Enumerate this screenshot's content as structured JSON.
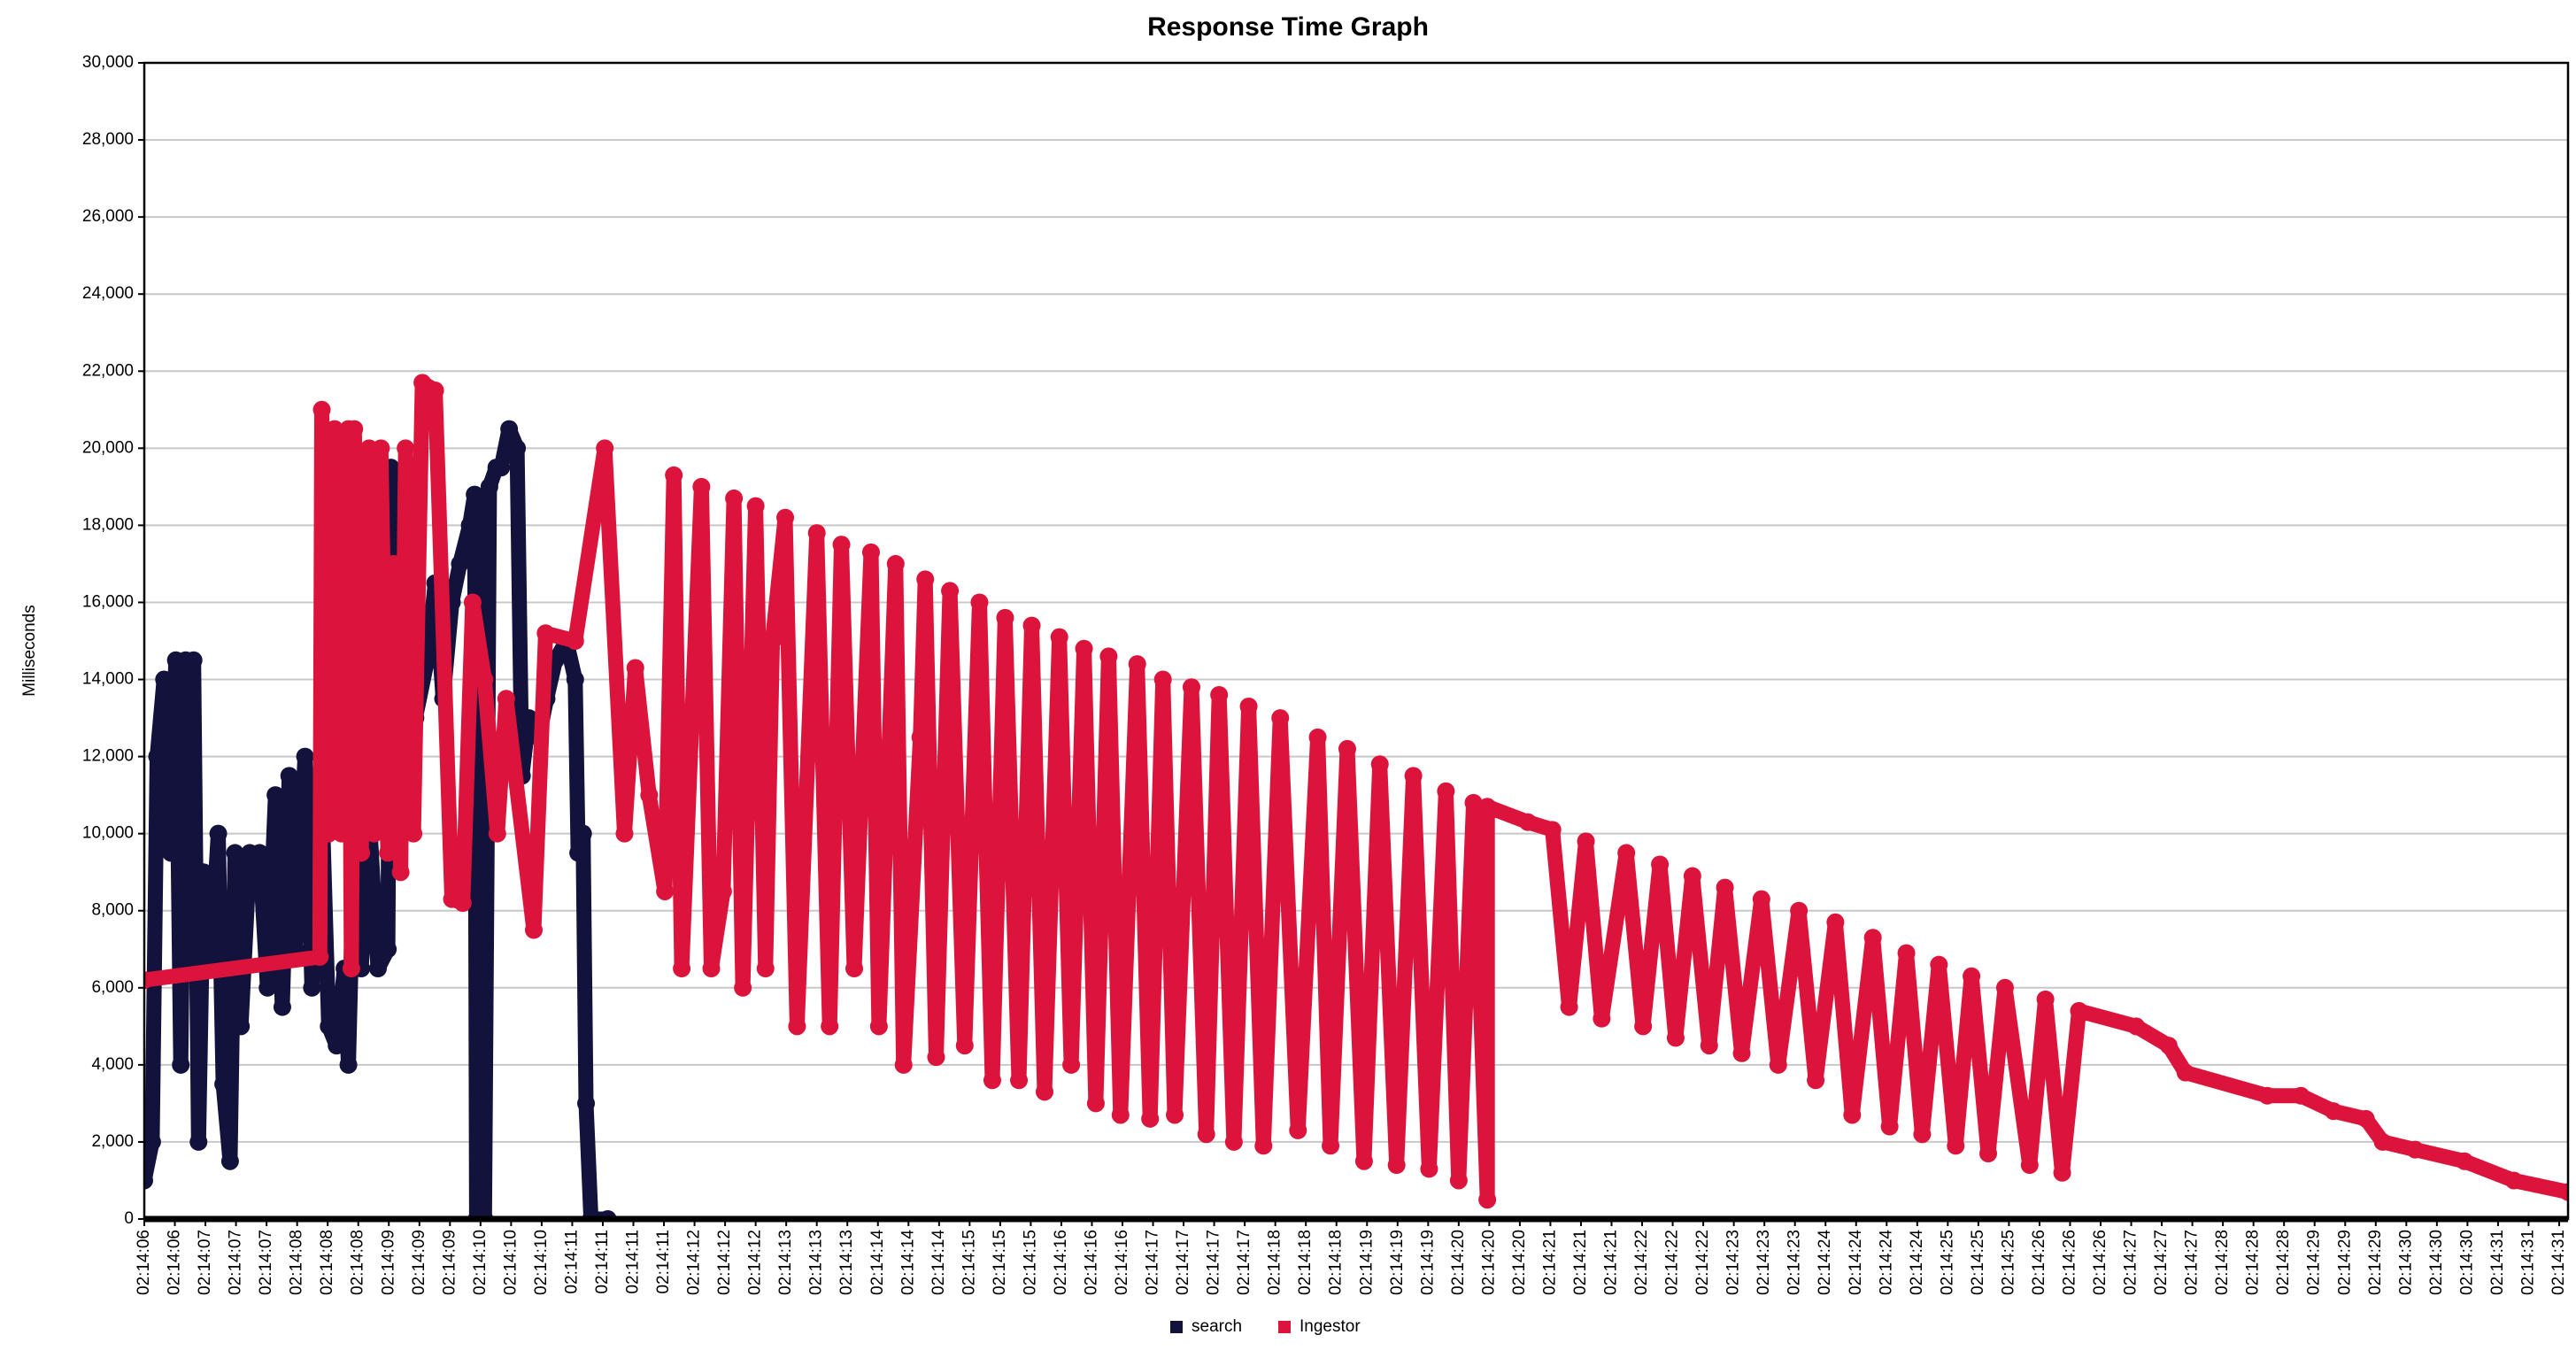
{
  "chart_data": {
    "type": "line",
    "title": "Response Time Graph",
    "y_label": "Milliseconds",
    "xlim": [
      0,
      24.58
    ],
    "xticks": [
      {
        "value": 0,
        "label": "02:14:06"
      },
      {
        "value": 0.31,
        "label": "02:14:06"
      },
      {
        "value": 0.62,
        "label": "02:14:07"
      },
      {
        "value": 0.93,
        "label": "02:14:07"
      },
      {
        "value": 1.24,
        "label": "02:14:07"
      },
      {
        "value": 1.55,
        "label": "02:14:08"
      },
      {
        "value": 1.86,
        "label": "02:14:08"
      },
      {
        "value": 2.17,
        "label": "02:14:08"
      },
      {
        "value": 2.48,
        "label": "02:14:09"
      },
      {
        "value": 2.79,
        "label": "02:14:09"
      },
      {
        "value": 3.1,
        "label": "02:14:09"
      },
      {
        "value": 3.41,
        "label": "02:14:10"
      },
      {
        "value": 3.72,
        "label": "02:14:10"
      },
      {
        "value": 4.03,
        "label": "02:14:10"
      },
      {
        "value": 4.34,
        "label": "02:14:11"
      },
      {
        "value": 4.65,
        "label": "02:14:11"
      },
      {
        "value": 4.96,
        "label": "02:14:11"
      },
      {
        "value": 5.27,
        "label": "02:14:11"
      },
      {
        "value": 5.58,
        "label": "02:14:12"
      },
      {
        "value": 5.89,
        "label": "02:14:12"
      },
      {
        "value": 6.2,
        "label": "02:14:12"
      },
      {
        "value": 6.51,
        "label": "02:14:13"
      },
      {
        "value": 6.82,
        "label": "02:14:13"
      },
      {
        "value": 7.13,
        "label": "02:14:13"
      },
      {
        "value": 7.44,
        "label": "02:14:14"
      },
      {
        "value": 7.75,
        "label": "02:14:14"
      },
      {
        "value": 8.06,
        "label": "02:14:14"
      },
      {
        "value": 8.37,
        "label": "02:14:15"
      },
      {
        "value": 8.68,
        "label": "02:14:15"
      },
      {
        "value": 8.99,
        "label": "02:14:15"
      },
      {
        "value": 9.3,
        "label": "02:14:16"
      },
      {
        "value": 9.61,
        "label": "02:14:16"
      },
      {
        "value": 9.92,
        "label": "02:14:16"
      },
      {
        "value": 10.23,
        "label": "02:14:17"
      },
      {
        "value": 10.54,
        "label": "02:14:17"
      },
      {
        "value": 10.85,
        "label": "02:14:17"
      },
      {
        "value": 11.16,
        "label": "02:14:17"
      },
      {
        "value": 11.47,
        "label": "02:14:18"
      },
      {
        "value": 11.78,
        "label": "02:14:18"
      },
      {
        "value": 12.09,
        "label": "02:14:18"
      },
      {
        "value": 12.4,
        "label": "02:14:19"
      },
      {
        "value": 12.71,
        "label": "02:14:19"
      },
      {
        "value": 13.02,
        "label": "02:14:19"
      },
      {
        "value": 13.33,
        "label": "02:14:20"
      },
      {
        "value": 13.64,
        "label": "02:14:20"
      },
      {
        "value": 13.95,
        "label": "02:14:20"
      },
      {
        "value": 14.26,
        "label": "02:14:21"
      },
      {
        "value": 14.57,
        "label": "02:14:21"
      },
      {
        "value": 14.88,
        "label": "02:14:21"
      },
      {
        "value": 15.19,
        "label": "02:14:22"
      },
      {
        "value": 15.5,
        "label": "02:14:22"
      },
      {
        "value": 15.81,
        "label": "02:14:22"
      },
      {
        "value": 16.12,
        "label": "02:14:23"
      },
      {
        "value": 16.43,
        "label": "02:14:23"
      },
      {
        "value": 16.74,
        "label": "02:14:23"
      },
      {
        "value": 17.05,
        "label": "02:14:24"
      },
      {
        "value": 17.36,
        "label": "02:14:24"
      },
      {
        "value": 17.67,
        "label": "02:14:24"
      },
      {
        "value": 17.98,
        "label": "02:14:24"
      },
      {
        "value": 18.29,
        "label": "02:14:25"
      },
      {
        "value": 18.6,
        "label": "02:14:25"
      },
      {
        "value": 18.91,
        "label": "02:14:25"
      },
      {
        "value": 19.22,
        "label": "02:14:26"
      },
      {
        "value": 19.53,
        "label": "02:14:26"
      },
      {
        "value": 19.84,
        "label": "02:14:26"
      },
      {
        "value": 20.15,
        "label": "02:14:27"
      },
      {
        "value": 20.46,
        "label": "02:14:27"
      },
      {
        "value": 20.77,
        "label": "02:14:27"
      },
      {
        "value": 21.08,
        "label": "02:14:28"
      },
      {
        "value": 21.39,
        "label": "02:14:28"
      },
      {
        "value": 21.7,
        "label": "02:14:28"
      },
      {
        "value": 22.01,
        "label": "02:14:29"
      },
      {
        "value": 22.32,
        "label": "02:14:29"
      },
      {
        "value": 22.63,
        "label": "02:14:29"
      },
      {
        "value": 22.94,
        "label": "02:14:30"
      },
      {
        "value": 23.25,
        "label": "02:14:30"
      },
      {
        "value": 23.56,
        "label": "02:14:30"
      },
      {
        "value": 23.87,
        "label": "02:14:31"
      },
      {
        "value": 24.18,
        "label": "02:14:31"
      },
      {
        "value": 24.49,
        "label": "02:14:31"
      }
    ],
    "ylim": [
      0,
      30000
    ],
    "yticks": [
      0,
      {
        "value": 2000,
        "label": "2,000"
      },
      {
        "value": 4000,
        "label": "4,000"
      },
      {
        "value": 6000,
        "label": "6,000"
      },
      {
        "value": 8000,
        "label": "8,000"
      },
      {
        "value": 10000,
        "label": "10,000"
      },
      {
        "value": 12000,
        "label": "12,000"
      },
      {
        "value": 14000,
        "label": "14,000"
      },
      {
        "value": 16000,
        "label": "16,000"
      },
      {
        "value": 18000,
        "label": "18,000"
      },
      {
        "value": 20000,
        "label": "20,000"
      },
      {
        "value": 22000,
        "label": "22,000"
      },
      {
        "value": 24000,
        "label": "24,000"
      },
      {
        "value": 26000,
        "label": "26,000"
      },
      {
        "value": 28000,
        "label": "28,000"
      },
      {
        "value": 30000,
        "label": "30,000"
      }
    ],
    "grid": true,
    "legend": "bottom",
    "series": [
      {
        "name": "search",
        "color": "#12123d",
        "x": [
          0,
          0.08,
          0.13,
          0.2,
          0.27,
          0.32,
          0.37,
          0.42,
          0.5,
          0.55,
          0.6,
          0.67,
          0.75,
          0.8,
          0.87,
          0.92,
          0.98,
          1.07,
          1.17,
          1.25,
          1.33,
          1.4,
          1.47,
          1.53,
          1.63,
          1.7,
          1.8,
          1.87,
          1.95,
          2.03,
          2.07,
          2.12,
          2.2,
          2.28,
          2.37,
          2.47,
          2.5,
          2.57,
          2.67,
          2.75,
          2.87,
          2.95,
          3.03,
          3.12,
          3.2,
          3.3,
          3.35,
          3.37,
          3.45,
          3.48,
          3.5,
          3.57,
          3.62,
          3.7,
          3.78,
          3.83,
          3.9,
          4.0,
          4.08,
          4.17,
          4.28,
          4.37,
          4.4,
          4.45,
          4.48,
          4.53,
          4.7
        ],
        "values": [
          1000,
          2000,
          12000,
          14000,
          9500,
          14500,
          4000,
          14500,
          14500,
          2000,
          9000,
          6500,
          10000,
          3500,
          1500,
          9500,
          5000,
          9500,
          9500,
          6000,
          11000,
          5500,
          11500,
          7000,
          12000,
          6000,
          11000,
          5000,
          4500,
          6500,
          4000,
          9000,
          6500,
          10500,
          6500,
          7000,
          19500,
          11000,
          17000,
          13000,
          14500,
          16500,
          13500,
          16000,
          17000,
          18000,
          18800,
          0,
          0,
          10700,
          19000,
          19500,
          19500,
          20500,
          20000,
          11500,
          13000,
          12500,
          13500,
          14500,
          15000,
          14000,
          9500,
          10000,
          3000,
          0,
          0
        ]
      },
      {
        "name": "Ingestor",
        "color": "#dc143c",
        "x": [
          0,
          1.78,
          1.8,
          1.87,
          1.93,
          2.0,
          2.07,
          2.1,
          2.13,
          2.2,
          2.28,
          2.33,
          2.4,
          2.47,
          2.53,
          2.6,
          2.65,
          2.73,
          2.82,
          2.95,
          3.12,
          3.23,
          3.33,
          3.45,
          3.58,
          3.67,
          3.95,
          4.07,
          4.37,
          4.67,
          4.87,
          4.98,
          5.12,
          5.28,
          5.37,
          5.45,
          5.65,
          5.75,
          5.87,
          5.98,
          6.07,
          6.2,
          6.3,
          6.37,
          6.5,
          6.62,
          6.82,
          6.95,
          7.07,
          7.2,
          7.37,
          7.45,
          7.62,
          7.7,
          7.87,
          7.92,
          8.03,
          8.17,
          8.32,
          8.47,
          8.6,
          8.73,
          8.87,
          9.0,
          9.13,
          9.28,
          9.4,
          9.53,
          9.65,
          9.78,
          9.9,
          10.07,
          10.2,
          10.33,
          10.45,
          10.62,
          10.77,
          10.9,
          11.05,
          11.2,
          11.35,
          11.52,
          11.7,
          11.9,
          12.03,
          12.2,
          12.37,
          12.53,
          12.7,
          12.87,
          13.03,
          13.2,
          13.33,
          13.48,
          13.62,
          13.62,
          14.03,
          14.28,
          14.45,
          14.62,
          14.78,
          15.03,
          15.2,
          15.37,
          15.53,
          15.7,
          15.87,
          16.03,
          16.2,
          16.4,
          16.57,
          16.78,
          16.95,
          17.15,
          17.32,
          17.53,
          17.7,
          17.87,
          18.03,
          18.2,
          18.37,
          18.53,
          18.7,
          18.87,
          19.12,
          19.28,
          19.45,
          19.62,
          20.2,
          20.53,
          20.7,
          21.53,
          21.87,
          22.2,
          22.53,
          22.7,
          23.03,
          23.53,
          24.03,
          24.58
        ],
        "values": [
          6200,
          6800,
          21000,
          10000,
          20500,
          10000,
          20500,
          6500,
          20500,
          9500,
          20000,
          10000,
          20000,
          9500,
          17000,
          9000,
          20000,
          10000,
          21700,
          21500,
          8300,
          8200,
          16000,
          14000,
          10000,
          13500,
          7500,
          15200,
          15000,
          20000,
          10000,
          14300,
          11000,
          8500,
          19300,
          6500,
          19000,
          6500,
          8500,
          18700,
          6000,
          18500,
          6500,
          15000,
          18200,
          5000,
          17800,
          5000,
          17500,
          6500,
          17300,
          5000,
          17000,
          4000,
          12500,
          16600,
          4200,
          16300,
          4500,
          16000,
          3600,
          15600,
          3600,
          15400,
          3300,
          15100,
          4000,
          14800,
          3000,
          14600,
          2700,
          14400,
          2600,
          14000,
          2700,
          13800,
          2200,
          13600,
          2000,
          13300,
          1900,
          13000,
          2300,
          12500,
          1900,
          12200,
          1500,
          11800,
          1400,
          11500,
          1300,
          11100,
          1000,
          10800,
          500,
          10700,
          10300,
          10100,
          5500,
          9800,
          5200,
          9500,
          5000,
          9200,
          4700,
          8900,
          4500,
          8600,
          4300,
          8300,
          4000,
          8000,
          3600,
          7700,
          2700,
          7300,
          2400,
          6900,
          2200,
          6600,
          1900,
          6300,
          1700,
          6000,
          1400,
          5700,
          1200,
          5400,
          5000,
          4500,
          3800,
          3200,
          3200,
          2800,
          2600,
          2000,
          1800,
          1500,
          1000,
          700
        ]
      }
    ]
  }
}
